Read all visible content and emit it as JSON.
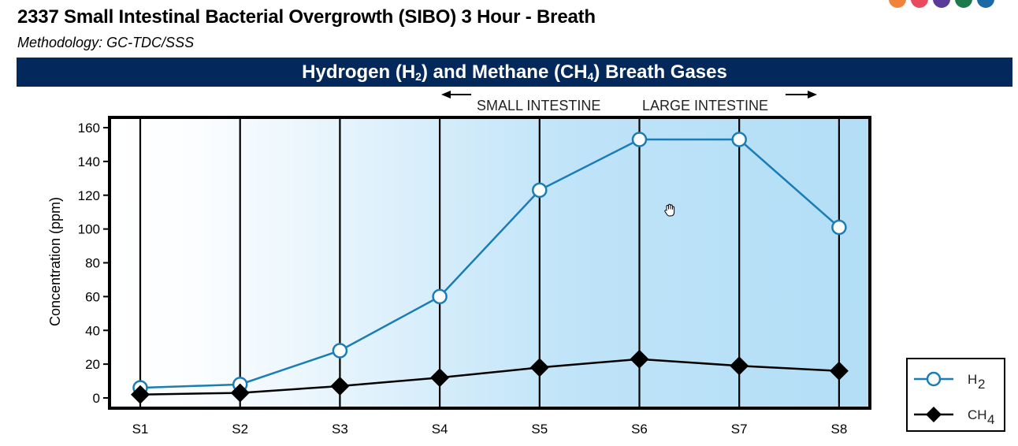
{
  "header": {
    "title": "2337 Small Intestinal Bacterial Overgrowth (SIBO) 3 Hour - Breath",
    "methodology": "Methodology: GC-TDC/SSS"
  },
  "brand_dots": [
    "#f0843c",
    "#e84a5f",
    "#5b3a99",
    "#1e7a4a",
    "#1b6aa5"
  ],
  "banner": {
    "part1": "Hydrogen (H",
    "sub1": "2",
    "part2": ") and Methane (CH",
    "sub2": "4",
    "part3": ") Breath Gases"
  },
  "regions": {
    "small": "SMALL INTESTINE",
    "large": "LARGE INTESTINE"
  },
  "chart_data": {
    "type": "line",
    "title": "Hydrogen (H2) and Methane (CH4) Breath Gases",
    "ylabel": "Concentration (ppm)",
    "xlabel": "",
    "ylim": [
      0,
      160
    ],
    "yticks": [
      0,
      20,
      40,
      60,
      80,
      100,
      120,
      140,
      160
    ],
    "categories": [
      "S1",
      "S2",
      "S3",
      "S4",
      "S5",
      "S6",
      "S7",
      "S8"
    ],
    "grid": "vertical",
    "legend_position": "bottom-right",
    "series": [
      {
        "name": "H2",
        "name_main": "H",
        "name_sub": "2",
        "marker": "open-circle",
        "color": "#1b7db5",
        "values": [
          6,
          8,
          28,
          60,
          123,
          153,
          153,
          101
        ]
      },
      {
        "name": "CH4",
        "name_main": "CH",
        "name_sub": "4",
        "marker": "diamond",
        "color": "#000000",
        "values": [
          2,
          3,
          7,
          12,
          18,
          23,
          19,
          16
        ]
      }
    ]
  }
}
